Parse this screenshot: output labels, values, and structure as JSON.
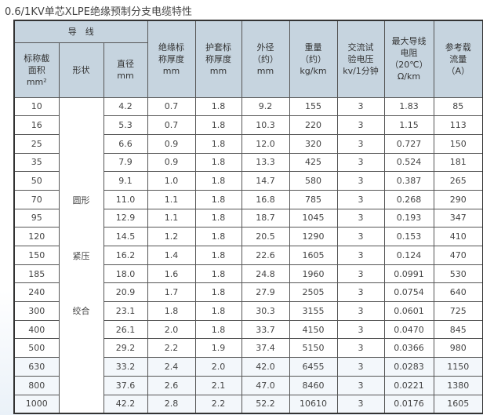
{
  "title": "0.6/1KV单芯XLPE绝缘预制分支电缆特性",
  "header": {
    "conductor_group": "导　线",
    "columns": [
      {
        "lines": [
          "标称截",
          "面积",
          "mm²"
        ]
      },
      {
        "lines": [
          "形状"
        ]
      },
      {
        "lines": [
          "直径",
          "mm"
        ]
      },
      {
        "lines": [
          "绝缘标",
          "称厚度",
          "mm"
        ]
      },
      {
        "lines": [
          "护套标",
          "称厚度",
          "mm"
        ]
      },
      {
        "lines": [
          "外径",
          "（约）",
          "mm"
        ]
      },
      {
        "lines": [
          "重量",
          "（约）",
          "kg/km"
        ]
      },
      {
        "lines": [
          "交流试",
          "验电压",
          "kv/1分钟"
        ]
      },
      {
        "lines": [
          "最大导线",
          "电阻",
          "（20℃）",
          "Ω/km"
        ]
      },
      {
        "lines": [
          "参考载",
          "流量",
          "（A）"
        ]
      }
    ]
  },
  "shape_labels": [
    "圆形",
    "紧压",
    "绞合"
  ],
  "rows": [
    [
      "10",
      "4.2",
      "0.7",
      "1.8",
      "9.2",
      "155",
      "3",
      "1.83",
      "85"
    ],
    [
      "16",
      "5.3",
      "0.7",
      "1.8",
      "10.3",
      "220",
      "3",
      "1.15",
      "113"
    ],
    [
      "25",
      "6.6",
      "0.9",
      "1.8",
      "12.0",
      "320",
      "3",
      "0.727",
      "150"
    ],
    [
      "35",
      "7.9",
      "0.9",
      "1.8",
      "13.3",
      "425",
      "3",
      "0.524",
      "181"
    ],
    [
      "50",
      "9.1",
      "1.0",
      "1.8",
      "14.7",
      "580",
      "3",
      "0.387",
      "265"
    ],
    [
      "70",
      "11.0",
      "1.1",
      "1.8",
      "16.8",
      "785",
      "3",
      "0.268",
      "290"
    ],
    [
      "95",
      "12.9",
      "1.1",
      "1.8",
      "18.7",
      "1045",
      "3",
      "0.193",
      "347"
    ],
    [
      "120",
      "14.5",
      "1.2",
      "1.8",
      "20.5",
      "1290",
      "3",
      "0.153",
      "410"
    ],
    [
      "150",
      "16.2",
      "1.4",
      "1.8",
      "22.6",
      "1605",
      "3",
      "0.124",
      "470"
    ],
    [
      "185",
      "18.0",
      "1.6",
      "1.8",
      "24.8",
      "1960",
      "3",
      "0.0991",
      "530"
    ],
    [
      "240",
      "20.9",
      "1.7",
      "1.8",
      "27.9",
      "2505",
      "3",
      "0.0754",
      "640"
    ],
    [
      "300",
      "23.1",
      "1.8",
      "1.8",
      "30.3",
      "3155",
      "3",
      "0.0601",
      "725"
    ],
    [
      "400",
      "26.1",
      "2.0",
      "1.8",
      "33.7",
      "4150",
      "3",
      "0.0470",
      "845"
    ],
    [
      "500",
      "29.2",
      "2.2",
      "1.9",
      "37.4",
      "5150",
      "3",
      "0.0366",
      "980"
    ],
    [
      "630",
      "33.2",
      "2.4",
      "2.0",
      "42.0",
      "6455",
      "3",
      "0.0283",
      "1150"
    ],
    [
      "800",
      "37.6",
      "2.6",
      "2.1",
      "47.0",
      "8460",
      "3",
      "0.0221",
      "1380"
    ],
    [
      "1000",
      "42.2",
      "2.8",
      "2.2",
      "52.2",
      "10610",
      "3",
      "0.0176",
      "1605"
    ]
  ]
}
